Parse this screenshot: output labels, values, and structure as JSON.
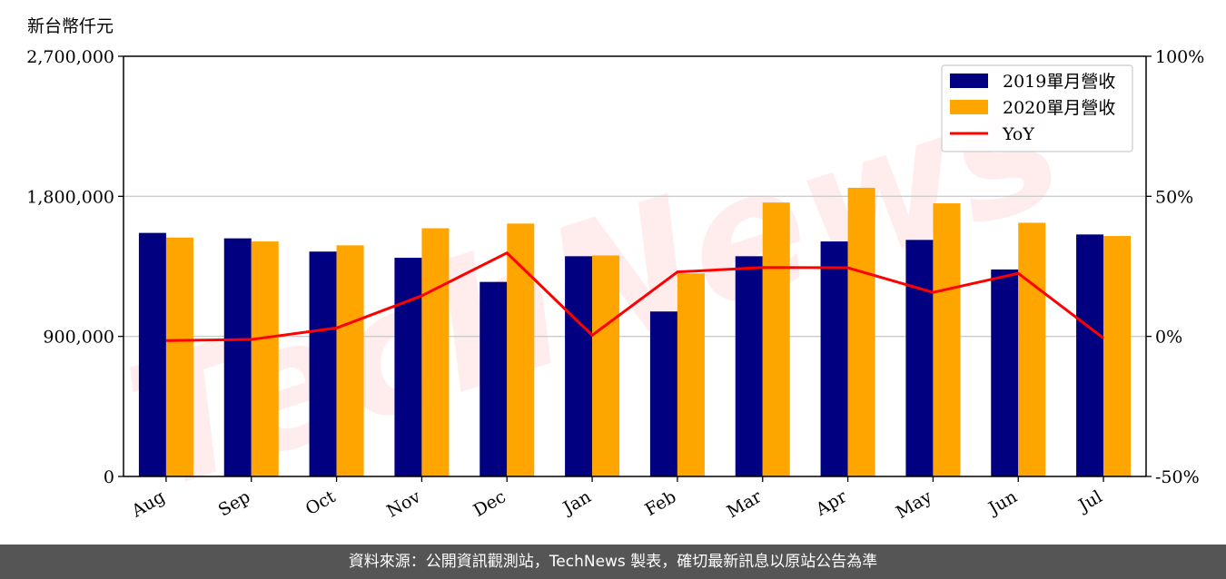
{
  "unit_label": "新台幣仟元",
  "footer": "資料來源：公開資訊觀測站，TechNews 製表，確切最新訊息以原站公告為準",
  "watermark": "TechNews",
  "colors": {
    "series_2019": "#000080",
    "series_2020": "#FFA500",
    "yoy": "#FF0000",
    "grid": "#cccccc",
    "footer_bg": "#555555"
  },
  "chart_data": {
    "type": "bar",
    "categories": [
      "Aug",
      "Sep",
      "Oct",
      "Nov",
      "Dec",
      "Jan",
      "Feb",
      "Mar",
      "Apr",
      "May",
      "Jun",
      "Jul"
    ],
    "series": [
      {
        "name": "2019單月營收",
        "values": [
          1565000,
          1530000,
          1445000,
          1405000,
          1250000,
          1415000,
          1060000,
          1415000,
          1510000,
          1520000,
          1330000,
          1555000
        ]
      },
      {
        "name": "2020單月營收",
        "values": [
          1535000,
          1510000,
          1485000,
          1595000,
          1625000,
          1420000,
          1305000,
          1760000,
          1855000,
          1755000,
          1630000,
          1545000
        ]
      }
    ],
    "line_series": {
      "name": "YoY",
      "axis": "right",
      "values": [
        -1.5,
        -1.1,
        3.0,
        14.5,
        29.8,
        0.4,
        23.0,
        24.6,
        24.5,
        15.7,
        22.5,
        -0.6
      ]
    },
    "ylim": [
      0,
      2700000
    ],
    "y_ticks": [
      "0",
      "900,000",
      "1,800,000",
      "2,700,000"
    ],
    "y_tick_values": [
      0,
      900000,
      1800000,
      2700000
    ],
    "y2lim": [
      -50,
      100
    ],
    "y2_ticks": [
      "-50%",
      "0%",
      "50%",
      "100%"
    ],
    "y2_tick_values": [
      -50,
      0,
      50,
      100
    ],
    "grid": "horizontal",
    "legend_position": "top-right"
  }
}
